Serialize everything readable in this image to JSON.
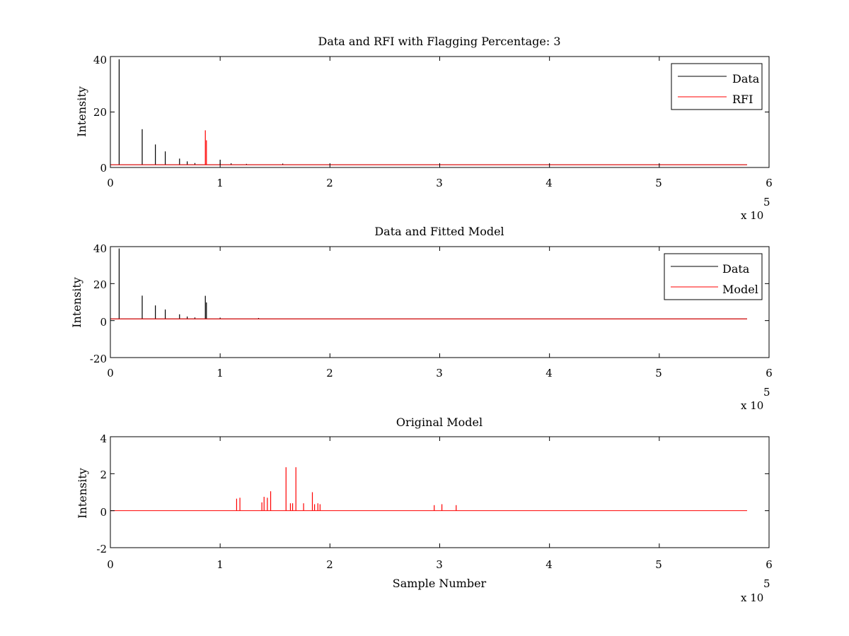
{
  "chart_data": [
    {
      "type": "line",
      "title": "Data and RFI with Flagging Percentage: 3",
      "xlabel": "",
      "ylabel": "Intensity",
      "xlim": [
        0,
        6
      ],
      "ylim": [
        0,
        40
      ],
      "xticks": [
        "0",
        "1",
        "2",
        "3",
        "4",
        "5",
        "6"
      ],
      "yticks": [
        "0",
        "20",
        "40"
      ],
      "x_multiplier": "x 10",
      "x_multiplier_exp": "5",
      "legend_position": "top-right",
      "grid": false,
      "baseline": 1,
      "x_end": 5.8,
      "series": [
        {
          "name": "Data",
          "color": "#000000",
          "spikes": [
            {
              "x": 0.08,
              "y": 39
            },
            {
              "x": 0.29,
              "y": 13.8
            },
            {
              "x": 0.41,
              "y": 8.3
            },
            {
              "x": 0.5,
              "y": 5.8
            },
            {
              "x": 0.63,
              "y": 3.2
            },
            {
              "x": 0.7,
              "y": 2.2
            },
            {
              "x": 0.77,
              "y": 1.6
            },
            {
              "x": 1.0,
              "y": 2.8
            },
            {
              "x": 1.1,
              "y": 1.5
            },
            {
              "x": 1.24,
              "y": 1.3
            },
            {
              "x": 1.57,
              "y": 1.4
            }
          ]
        },
        {
          "name": "RFI",
          "color": "#ff0000",
          "spikes": [
            {
              "x": 0.865,
              "y": 13.4
            },
            {
              "x": 0.875,
              "y": 9.8
            }
          ]
        }
      ]
    },
    {
      "type": "line",
      "title": "Data and Fitted Model",
      "xlabel": "",
      "ylabel": "Intensity",
      "xlim": [
        0,
        6
      ],
      "ylim": [
        -20,
        40
      ],
      "xticks": [
        "0",
        "1",
        "2",
        "3",
        "4",
        "5",
        "6"
      ],
      "yticks": [
        "-20",
        "0",
        "20",
        "40"
      ],
      "x_multiplier": "x 10",
      "x_multiplier_exp": "5",
      "legend_position": "top-right",
      "grid": false,
      "baseline": 0.9,
      "x_end": 5.8,
      "series": [
        {
          "name": "Data",
          "color": "#000000",
          "spikes": [
            {
              "x": 0.08,
              "y": 39
            },
            {
              "x": 0.29,
              "y": 13.5
            },
            {
              "x": 0.41,
              "y": 8.2
            },
            {
              "x": 0.5,
              "y": 6
            },
            {
              "x": 0.63,
              "y": 3.4
            },
            {
              "x": 0.7,
              "y": 2.2
            },
            {
              "x": 0.77,
              "y": 1.7
            },
            {
              "x": 0.865,
              "y": 13.4
            },
            {
              "x": 0.875,
              "y": 9.8
            },
            {
              "x": 1.0,
              "y": 1.6
            },
            {
              "x": 1.35,
              "y": 1.4
            }
          ]
        },
        {
          "name": "Model",
          "color": "#ff0000",
          "spikes": []
        }
      ]
    },
    {
      "type": "line",
      "title": "Original Model",
      "xlabel": "Sample Number",
      "ylabel": "Intensity",
      "xlim": [
        0,
        6
      ],
      "ylim": [
        -2,
        4
      ],
      "xticks": [
        "0",
        "1",
        "2",
        "3",
        "4",
        "5",
        "6"
      ],
      "yticks": [
        "-2",
        "0",
        "2",
        "4"
      ],
      "x_multiplier": "x 10",
      "x_multiplier_exp": "5",
      "grid": false,
      "baseline": 0,
      "x_end": 5.8,
      "series": [
        {
          "name": "",
          "color": "#ff0000",
          "spikes": [
            {
              "x": 1.15,
              "y": 0.65
            },
            {
              "x": 1.18,
              "y": 0.7
            },
            {
              "x": 1.38,
              "y": 0.45
            },
            {
              "x": 1.4,
              "y": 0.75
            },
            {
              "x": 1.43,
              "y": 0.7
            },
            {
              "x": 1.46,
              "y": 1.05
            },
            {
              "x": 1.6,
              "y": 2.35
            },
            {
              "x": 1.64,
              "y": 0.4
            },
            {
              "x": 1.66,
              "y": 0.4
            },
            {
              "x": 1.69,
              "y": 2.35
            },
            {
              "x": 1.76,
              "y": 0.4
            },
            {
              "x": 1.84,
              "y": 1.0
            },
            {
              "x": 1.86,
              "y": 0.35
            },
            {
              "x": 1.89,
              "y": 0.4
            },
            {
              "x": 1.91,
              "y": 0.35
            },
            {
              "x": 2.95,
              "y": 0.3
            },
            {
              "x": 3.02,
              "y": 0.35
            },
            {
              "x": 3.15,
              "y": 0.3
            }
          ]
        }
      ]
    }
  ]
}
